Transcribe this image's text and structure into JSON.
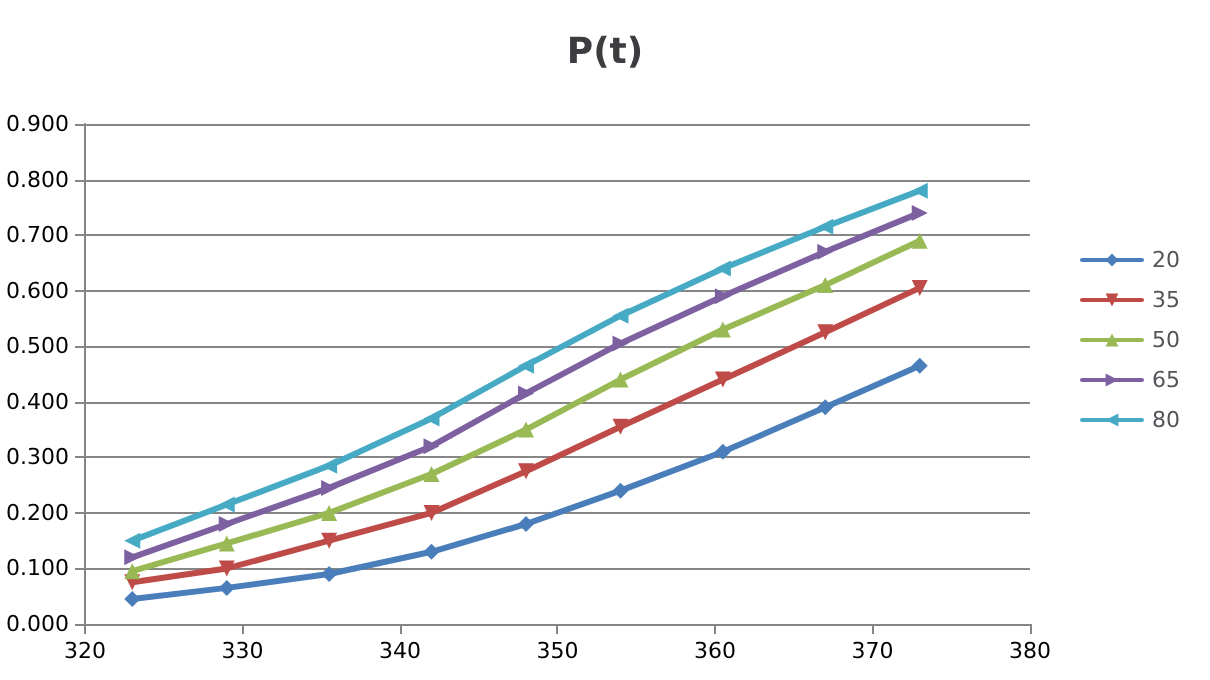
{
  "chart_data": {
    "type": "line",
    "title": "P(t)",
    "x": [
      323,
      329,
      335.5,
      342,
      348,
      354,
      360.5,
      367,
      373
    ],
    "series": [
      {
        "name": "20",
        "color": "#4a7ebb",
        "marker": "diamond",
        "values": [
          0.045,
          0.065,
          0.09,
          0.13,
          0.18,
          0.24,
          0.31,
          0.39,
          0.465
        ]
      },
      {
        "name": "35",
        "color": "#be4b48",
        "marker": "triangle-down",
        "values": [
          0.075,
          0.1,
          0.15,
          0.2,
          0.275,
          0.355,
          0.44,
          0.525,
          0.605
        ]
      },
      {
        "name": "50",
        "color": "#98b954",
        "marker": "triangle",
        "values": [
          0.095,
          0.145,
          0.2,
          0.27,
          0.35,
          0.44,
          0.53,
          0.61,
          0.69
        ]
      },
      {
        "name": "65",
        "color": "#7d60a0",
        "marker": "triangle-right",
        "values": [
          0.12,
          0.18,
          0.245,
          0.32,
          0.415,
          0.505,
          0.59,
          0.67,
          0.74
        ]
      },
      {
        "name": "80",
        "color": "#46aac5",
        "marker": "triangle-left",
        "values": [
          0.15,
          0.215,
          0.285,
          0.37,
          0.465,
          0.555,
          0.64,
          0.715,
          0.78
        ]
      }
    ],
    "xlim": [
      320,
      380
    ],
    "xticks": [
      320,
      330,
      340,
      350,
      360,
      370,
      380
    ],
    "ylim": [
      0,
      0.9
    ],
    "yticks": [
      {
        "value": 0,
        "label": "0.000"
      },
      {
        "value": 0.1,
        "label": "0.100"
      },
      {
        "value": 0.2,
        "label": "0.200"
      },
      {
        "value": 0.3,
        "label": "0.300"
      },
      {
        "value": 0.4,
        "label": "0.400"
      },
      {
        "value": 0.5,
        "label": "0.500"
      },
      {
        "value": 0.6,
        "label": "0.600"
      },
      {
        "value": 0.7,
        "label": "0.700"
      },
      {
        "value": 0.8,
        "label": "0.800"
      },
      {
        "value": 0.9,
        "label": "0.900"
      }
    ],
    "grid": "y",
    "legend": "right"
  }
}
